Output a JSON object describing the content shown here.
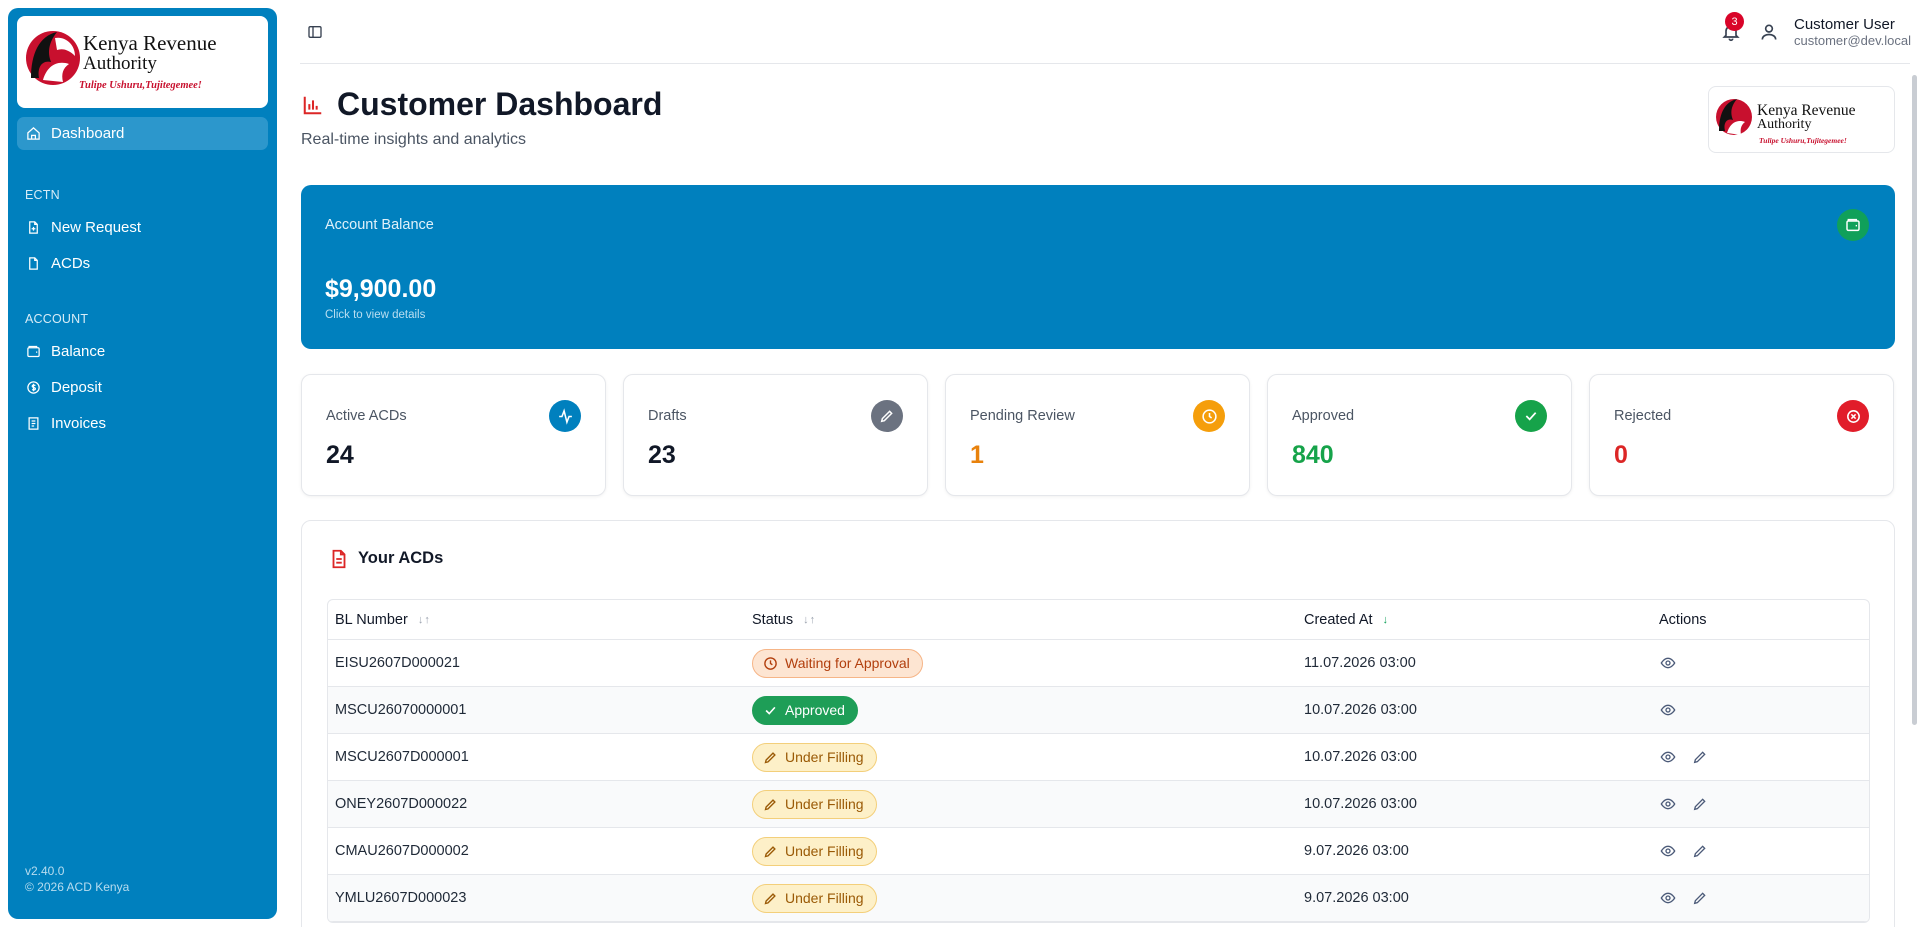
{
  "brand": {
    "name_line1": "Kenya Revenue",
    "name_line2": "Authority",
    "tagline": "Tulipe Ushuru,Tujitegemee!"
  },
  "sidebar": {
    "items_main": [
      {
        "label": "Dashboard",
        "icon": "home-icon"
      }
    ],
    "section_ectn": "ECTN",
    "items_ectn": [
      {
        "label": "New Request",
        "icon": "file-plus-icon"
      },
      {
        "label": "ACDs",
        "icon": "file-icon"
      }
    ],
    "section_account": "ACCOUNT",
    "items_account": [
      {
        "label": "Balance",
        "icon": "wallet-icon"
      },
      {
        "label": "Deposit",
        "icon": "dollar-circle-icon"
      },
      {
        "label": "Invoices",
        "icon": "receipt-icon"
      }
    ],
    "version": "v2.40.0",
    "copyright": "© 2026 ACD Kenya"
  },
  "topbar": {
    "notification_count": "3",
    "user_name": "Customer User",
    "user_email": "customer@dev.local"
  },
  "header": {
    "title": "Customer Dashboard",
    "subtitle": "Real-time insights and analytics"
  },
  "balance": {
    "label": "Account Balance",
    "amount": "$9,900.00",
    "hint": "Click to view details"
  },
  "stats": [
    {
      "label": "Active ACDs",
      "value": "24",
      "color": "#111827",
      "icon": "activity-icon",
      "icon_bg": "#0080be"
    },
    {
      "label": "Drafts",
      "value": "23",
      "color": "#111827",
      "icon": "pencil-icon",
      "icon_bg": "#6b7280"
    },
    {
      "label": "Pending Review",
      "value": "1",
      "color": "#e8820c",
      "icon": "clock-icon",
      "icon_bg": "#f59e0b"
    },
    {
      "label": "Approved",
      "value": "840",
      "color": "#16a34a",
      "icon": "check-icon",
      "icon_bg": "#16a34a"
    },
    {
      "label": "Rejected",
      "value": "0",
      "color": "#dc2626",
      "icon": "x-circle-icon",
      "icon_bg": "#e11d2a"
    }
  ],
  "acds": {
    "title": "Your ACDs",
    "columns": [
      "BL Number",
      "Status",
      "Created At",
      "Actions"
    ],
    "rows": [
      {
        "bl": "EISU2607D000021",
        "status": "Waiting for Approval",
        "kind": "waiting",
        "created": "11.07.2026 03:00",
        "editable": false
      },
      {
        "bl": "MSCU26070000001",
        "status": "Approved",
        "kind": "approved",
        "created": "10.07.2026 03:00",
        "editable": false
      },
      {
        "bl": "MSCU2607D000001",
        "status": "Under Filling",
        "kind": "filling",
        "created": "10.07.2026 03:00",
        "editable": true
      },
      {
        "bl": "ONEY2607D000022",
        "status": "Under Filling",
        "kind": "filling",
        "created": "10.07.2026 03:00",
        "editable": true
      },
      {
        "bl": "CMAU2607D000002",
        "status": "Under Filling",
        "kind": "filling",
        "created": "9.07.2026 03:00",
        "editable": true
      },
      {
        "bl": "YMLU2607D000023",
        "status": "Under Filling",
        "kind": "filling",
        "created": "9.07.2026 03:00",
        "editable": true
      }
    ]
  }
}
